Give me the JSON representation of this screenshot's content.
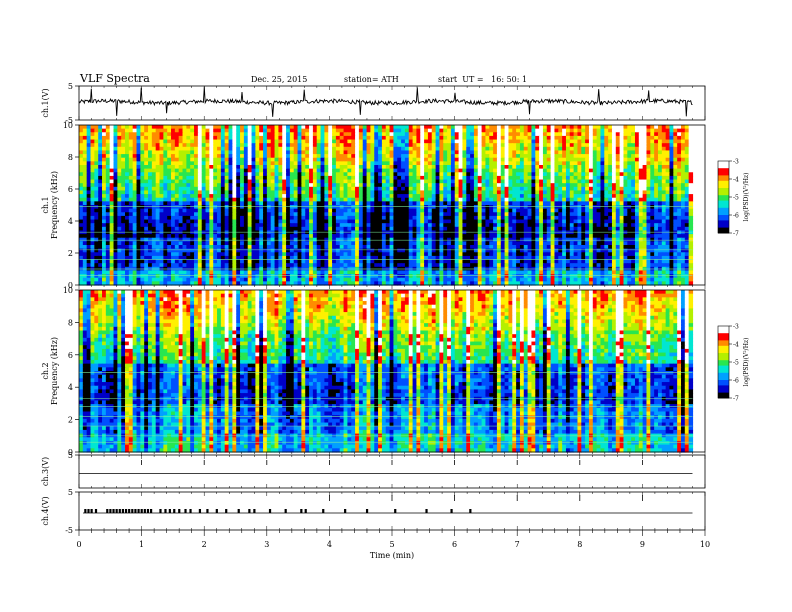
{
  "header": {
    "title": "VLF Spectra",
    "date": "Dec. 25, 2015",
    "station": "station= ATH",
    "start": "start  UT =   16: 50: 1"
  },
  "chart_data": [
    {
      "type": "line",
      "name": "ch1-waveform",
      "ylabel": "ch.1(V)",
      "ylim": [
        -5,
        5
      ],
      "yticks": [
        "5",
        "-5"
      ],
      "xlim": [
        0,
        10
      ],
      "baseline": 0.3,
      "x": [
        0.2,
        0.6,
        1.0,
        1.4,
        2.0,
        2.6,
        3.1,
        3.6,
        4.5,
        5.4,
        6.0,
        7.2,
        8.3,
        9.1,
        9.7
      ],
      "spikes": [
        4.2,
        -3.8,
        4.5,
        -3.0,
        4.8,
        3.2,
        -4.1,
        3.9,
        -3.5,
        4.6,
        3.0,
        -3.3,
        4.1,
        3.7,
        -3.9
      ]
    },
    {
      "type": "heatmap",
      "name": "ch1-spectrogram",
      "ylabel": "ch.1\nFrequency (kHz)",
      "ylim": [
        0,
        10
      ],
      "yticks": [
        "0",
        "2",
        "4",
        "6",
        "8",
        "10"
      ],
      "xlim": [
        0,
        9.8
      ],
      "colorbar": {
        "label": "log(PSD)(V²/Hz)",
        "range": [
          -7,
          -3
        ],
        "ticks": [
          "-3",
          "-4",
          "-5",
          "-6",
          "-7"
        ]
      }
    },
    {
      "type": "heatmap",
      "name": "ch2-spectrogram",
      "ylabel": "ch.2\nFrequency (kHz)",
      "ylim": [
        0,
        10
      ],
      "yticks": [
        "0",
        "2",
        "4",
        "6",
        "8",
        "10"
      ],
      "xlim": [
        0,
        9.8
      ],
      "colorbar": {
        "label": "log(PSD)(V²/Hz)",
        "range": [
          -7,
          -3
        ],
        "ticks": [
          "-3",
          "-4",
          "-5",
          "-6",
          "-7"
        ]
      }
    },
    {
      "type": "line",
      "name": "ch3-waveform",
      "ylabel": "ch.3(V)",
      "ylim": [
        -5,
        5
      ],
      "yticks": [
        "5"
      ],
      "xlim": [
        0,
        10
      ],
      "baseline": 0.3,
      "spikes_x": [
        1.0,
        2.0,
        3.0,
        4.0,
        5.0,
        6.0,
        7.0,
        8.0,
        9.0
      ]
    },
    {
      "type": "line",
      "name": "ch4-waveform",
      "ylabel": "ch.4(V)",
      "ylim": [
        -5,
        5
      ],
      "yticks": [
        "5",
        "-5"
      ],
      "xlim": [
        0,
        10
      ],
      "baseline": 0,
      "pulses_x": [
        0.1,
        0.15,
        0.2,
        0.27,
        0.45,
        0.5,
        0.55,
        0.6,
        0.65,
        0.7,
        0.75,
        0.8,
        0.85,
        0.9,
        0.95,
        1.0,
        1.05,
        1.1,
        1.15,
        1.3,
        1.38,
        1.45,
        1.52,
        1.6,
        1.7,
        1.78,
        1.93,
        2.05,
        2.2,
        2.35,
        2.55,
        2.72,
        2.8,
        3.05,
        3.3,
        3.55,
        3.62,
        3.9,
        4.25,
        4.6,
        5.05,
        5.55,
        5.95,
        6.25
      ]
    }
  ],
  "xaxis": {
    "label": "Time  (min)",
    "ticks": [
      "0",
      "1",
      "2",
      "3",
      "4",
      "5",
      "6",
      "7",
      "8",
      "9",
      "10"
    ]
  },
  "colormap": [
    "#000000",
    "#0000c8",
    "#0050ff",
    "#00a0ff",
    "#00e6d2",
    "#28e650",
    "#b4f000",
    "#fff000",
    "#ff8c00",
    "#ff0000",
    "#ffffff"
  ]
}
